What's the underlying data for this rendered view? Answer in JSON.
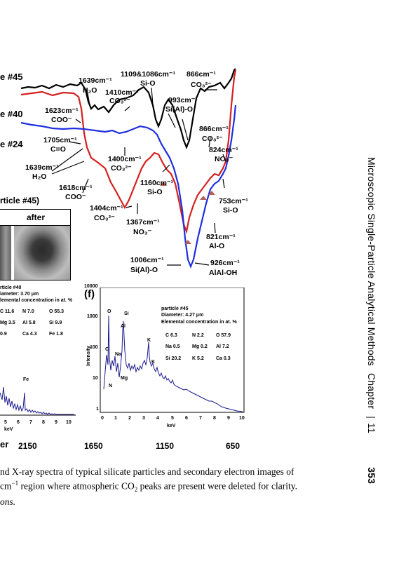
{
  "running_head": {
    "title": "Microscopic Single-Particle Analytical Methods",
    "chapter": "Chapter",
    "chapter_no": "11",
    "page_no": "353"
  },
  "ir_plot": {
    "row_labels": [
      "e #45",
      "e #40",
      "e #24"
    ],
    "annotations": {
      "a1639_top": "1639cm⁻¹",
      "h2o_top": "H₂O",
      "a1109": "1109&1086cm⁻¹",
      "sio_top": "Si-O",
      "a866_top": "866cm⁻¹",
      "co3_866": "CO₃²⁻",
      "a1410": "1410cm⁻¹",
      "co3_1410": "CO₃²⁻",
      "a993": "993cm⁻¹",
      "sialo": "Si(Al)-O",
      "a1623": "1623cm⁻¹",
      "coo_1623": "COO⁻",
      "a866_mid": "866cm⁻¹",
      "co3_866b": "CO₃²⁻",
      "a1705": "1705cm⁻¹",
      "co": "C=O",
      "a824": "824cm⁻¹",
      "no3_824": "NO₃⁻",
      "a1400": "1400cm⁻¹",
      "co3_1400": "CO₃²⁻",
      "a1639_left": "1639cm⁻¹",
      "h2o_left": "H₂O",
      "a1160": "1160cm⁻¹",
      "sio_1160": "Si-O",
      "a1618": "1618cm⁻¹",
      "coo_1618": "COO⁻",
      "a753": "753cm⁻¹",
      "sio_753": "Si-O",
      "a1404": "1404cm⁻¹",
      "co3_1404": "CO₃²⁻",
      "a1367": "1367cm⁻¹",
      "no3_1367": "NO₃⁻",
      "a821": "821cm⁻¹",
      "alo": "Al-O",
      "a1006": "1006cm⁻¹",
      "sialo_1006": "Si(Al)-O",
      "a926": "926cm⁻¹",
      "alaloh": "AlAl-OH"
    },
    "x_axis": {
      "label_partial": "er",
      "ticks": [
        "2150",
        "1650",
        "1150",
        "650"
      ]
    },
    "series": [
      {
        "name": "#45",
        "color": "#000000"
      },
      {
        "name": "#40",
        "color": "#d42020"
      },
      {
        "name": "#24",
        "color": "#1f2fe0"
      }
    ]
  },
  "image_panel": {
    "header_partial": "rticle #45)",
    "after_label": "after"
  },
  "edx_left": {
    "particle": "rticle #40",
    "diameter": "iameter: 3.70 μm",
    "conc_title": "lemental concentration in at. %",
    "rows": [
      [
        "C 11.6",
        "N  7.0",
        "O 55.3"
      ],
      [
        "Mg 3.5",
        "Al  5.8",
        "Si 9.9"
      ],
      [
        "0.9",
        "Ca 4.3",
        "Fe 1.8"
      ]
    ],
    "peak_fe": "Fe",
    "x_ticks": [
      "5",
      "6",
      "7",
      "8",
      "9",
      "10"
    ],
    "x_label": "keV"
  },
  "edx_right": {
    "panel": "(f)",
    "particle": "particle #45",
    "diameter": "Diameter: 4.27 μm",
    "conc_title": "Elemental concentration in at. %",
    "rows": [
      [
        "C 6.3",
        "N 2.2",
        "O 57.9"
      ],
      [
        "Na 0.5",
        "Mg 0.2",
        "Al 7.2"
      ],
      [
        "Si 20.2",
        "K 5.2",
        "Ca 0.3"
      ]
    ],
    "y_label": "Intensity",
    "y_ticks": [
      "10000",
      "1000",
      "100",
      "10",
      "1"
    ],
    "x_ticks": [
      "0",
      "1",
      "2",
      "3",
      "4",
      "5",
      "6",
      "7",
      "8",
      "9",
      "10"
    ],
    "x_label": "keV",
    "peaks": [
      "O",
      "Si",
      "Al",
      "C",
      "Na",
      "N",
      "Mg",
      "K",
      "K"
    ]
  },
  "caption": {
    "line1": "nd X-ray spectra of typical silicate particles and secondary electron images of",
    "line2a": " cm",
    "line2sup": "−1",
    "line2b": " region where atmospheric CO",
    "line2sub": "2",
    "line2c": " peaks are present were deleted for clarity.",
    "line3": "ons."
  }
}
